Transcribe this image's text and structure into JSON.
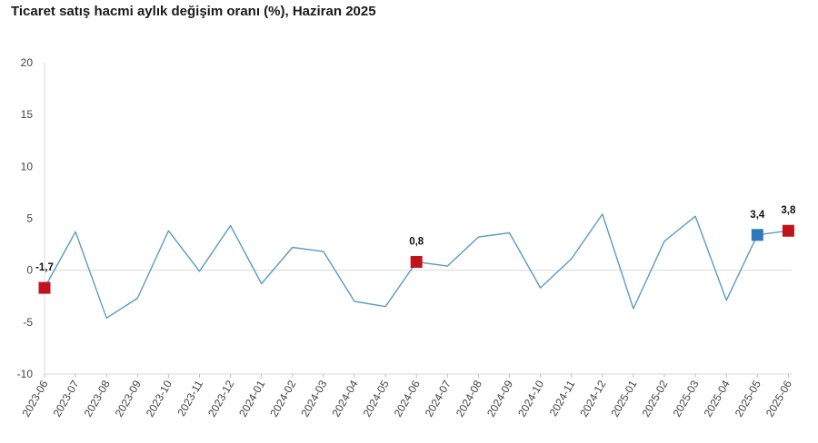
{
  "chart_data": {
    "type": "line",
    "title": "Ticaret satış hacmi aylık değişim oranı (%), Haziran 2025",
    "xlabel": "",
    "ylabel": "",
    "ylim": [
      -10,
      20
    ],
    "yticks": [
      20,
      15,
      10,
      5,
      0,
      -5,
      -10
    ],
    "grid": false,
    "categories": [
      "2023-06",
      "2023-07",
      "2023-08",
      "2023-09",
      "2023-10",
      "2023-11",
      "2023-12",
      "2024-01",
      "2024-02",
      "2024-03",
      "2024-04",
      "2024-05",
      "2024-06",
      "2024-07",
      "2024-08",
      "2024-09",
      "2024-10",
      "2024-11",
      "2024-12",
      "2025-01",
      "2025-02",
      "2025-03",
      "2025-04",
      "2025-05",
      "2025-06"
    ],
    "series": [
      {
        "color": "#5b9bc4",
        "values": [
          -1.7,
          3.7,
          -4.6,
          -2.7,
          3.8,
          -0.1,
          4.3,
          -1.3,
          2.2,
          1.8,
          -3.0,
          -3.5,
          0.8,
          0.4,
          3.2,
          3.6,
          -1.7,
          1.1,
          5.4,
          -3.7,
          2.8,
          5.2,
          -2.9,
          3.4,
          3.8
        ]
      }
    ],
    "highlights": [
      {
        "index": 0,
        "label": "-1,7",
        "color": "#c0141c"
      },
      {
        "index": 12,
        "label": "0,8",
        "color": "#c0141c"
      },
      {
        "index": 23,
        "label": "3,4",
        "color": "#2e78be"
      },
      {
        "index": 24,
        "label": "3,8",
        "color": "#c0141c"
      }
    ]
  }
}
